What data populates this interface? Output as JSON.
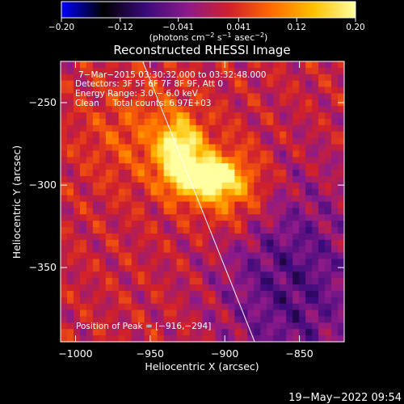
{
  "chart_data": {
    "type": "heatmap",
    "title": "Reconstructed RHESSI Image",
    "xlabel": "Heliocentric X (arcsec)",
    "ylabel": "Heliocentric Y (arcsec)",
    "xlim": [
      -1010,
      -820
    ],
    "ylim": [
      -395,
      -225
    ],
    "x_ticks": [
      -1000,
      -950,
      -900,
      -850
    ],
    "y_ticks": [
      -250,
      -300,
      -350
    ],
    "x_tick_labels": [
      "−1000",
      "−950",
      "−900",
      "−850"
    ],
    "y_tick_labels": [
      "−250",
      "−300",
      "−350"
    ],
    "colorbar": {
      "min": -0.2,
      "max": 0.2,
      "tick_values": [
        -0.2,
        -0.12,
        -0.041,
        0.041,
        0.12,
        0.2
      ],
      "tick_labels": [
        "−0.20",
        "−0.12",
        "−0.041",
        "0.041",
        "0.12",
        "0.20"
      ],
      "units_prefix": "(photons cm",
      "units_exp1": "−2",
      "units_mid": " s",
      "units_exp2": "−1",
      "units_mid2": " asec",
      "units_exp3": "−2",
      "units_suffix": ")"
    },
    "annotations": [
      "7−Mar−2015 03:30:32.000 to 03:32:48.000",
      "Detectors: 3F 5F 6F 7F 8F 9F, Att 0",
      "Energy Range: 3.0 − 6.0 keV",
      "Clean     Total counts: 6.97E+03"
    ],
    "peak_label": "Position of Peak = [−916,−294]",
    "peak": {
      "x": -916,
      "y": -294
    },
    "limb_line": [
      {
        "x": -955,
        "y": -225
      },
      {
        "x": -880,
        "y": -395
      }
    ],
    "sources": [
      {
        "x": -930,
        "y": -282,
        "sigma_x": 10,
        "sigma_y": 14,
        "amp": 0.2
      },
      {
        "x": -910,
        "y": -296,
        "sigma_x": 12,
        "sigma_y": 8,
        "amp": 0.19
      },
      {
        "x": -895,
        "y": -302,
        "sigma_x": 18,
        "sigma_y": 18,
        "amp": 0.09
      },
      {
        "x": -955,
        "y": -270,
        "sigma_x": 28,
        "sigma_y": 22,
        "amp": 0.05
      }
    ],
    "background_level": 0.02,
    "cold_region": {
      "x": -855,
      "y": -360,
      "sigma_x": 35,
      "sigma_y": 45,
      "amp": -0.09
    }
  },
  "footer": {
    "date_stamp": "19−May−2022 09:54"
  },
  "colors": {
    "background": "#000000",
    "foreground": "#ffffff",
    "colormap_stops": [
      "#0000ff",
      "#000000",
      "#3a0a7a",
      "#8c1a8a",
      "#d0202c",
      "#ff6a00",
      "#ffc000",
      "#ffffa0"
    ]
  }
}
